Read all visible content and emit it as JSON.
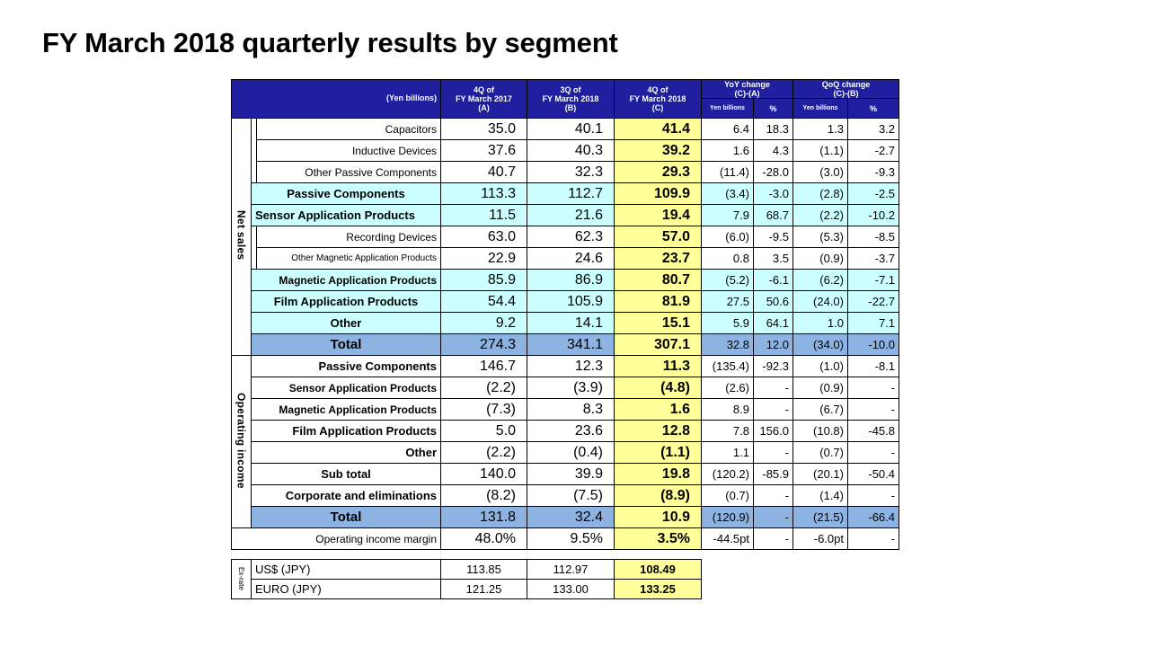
{
  "title": "FY March 2018 quarterly results by segment",
  "header": {
    "unit": "(Yen billions)",
    "col_a": [
      "4Q of",
      "FY March 2017",
      "(A)"
    ],
    "col_b": [
      "3Q of",
      "FY March 2018",
      "(B)"
    ],
    "col_c": [
      "4Q of",
      "FY March 2018",
      "(C)"
    ],
    "yoy": [
      "YoY change",
      "(C)-(A)"
    ],
    "qoq": [
      "QoQ change",
      "(C)-(B)"
    ],
    "yen_billions": "Yen billions",
    "percent": "%"
  },
  "net_sales_label": "Net sales",
  "net_sales": [
    {
      "label": "Capacitors",
      "a": "35.0",
      "b": "40.1",
      "c": "41.4",
      "yoy": "6.4",
      "yoy_pct": "18.3",
      "qoq": "1.3",
      "qoq_pct": "3.2"
    },
    {
      "label": "Inductive Devices",
      "a": "37.6",
      "b": "40.3",
      "c": "39.2",
      "yoy": "1.6",
      "yoy_pct": "4.3",
      "qoq": "(1.1)",
      "qoq_pct": "-2.7"
    },
    {
      "label": "Other Passive Components",
      "a": "40.7",
      "b": "32.3",
      "c": "29.3",
      "yoy": "(11.4)",
      "yoy_pct": "-28.0",
      "qoq": "(3.0)",
      "qoq_pct": "-9.3"
    },
    {
      "label": "Passive Components",
      "a": "113.3",
      "b": "112.7",
      "c": "109.9",
      "yoy": "(3.4)",
      "yoy_pct": "-3.0",
      "qoq": "(2.8)",
      "qoq_pct": "-2.5"
    },
    {
      "label": "Sensor Application Products",
      "a": "11.5",
      "b": "21.6",
      "c": "19.4",
      "yoy": "7.9",
      "yoy_pct": "68.7",
      "qoq": "(2.2)",
      "qoq_pct": "-10.2"
    },
    {
      "label": "Recording Devices",
      "a": "63.0",
      "b": "62.3",
      "c": "57.0",
      "yoy": "(6.0)",
      "yoy_pct": "-9.5",
      "qoq": "(5.3)",
      "qoq_pct": "-8.5"
    },
    {
      "label": "Other Magnetic Application Products",
      "a": "22.9",
      "b": "24.6",
      "c": "23.7",
      "yoy": "0.8",
      "yoy_pct": "3.5",
      "qoq": "(0.9)",
      "qoq_pct": "-3.7"
    },
    {
      "label": "Magnetic Application Products",
      "a": "85.9",
      "b": "86.9",
      "c": "80.7",
      "yoy": "(5.2)",
      "yoy_pct": "-6.1",
      "qoq": "(6.2)",
      "qoq_pct": "-7.1"
    },
    {
      "label": "Film Application Products",
      "a": "54.4",
      "b": "105.9",
      "c": "81.9",
      "yoy": "27.5",
      "yoy_pct": "50.6",
      "qoq": "(24.0)",
      "qoq_pct": "-22.7"
    },
    {
      "label": "Other",
      "a": "9.2",
      "b": "14.1",
      "c": "15.1",
      "yoy": "5.9",
      "yoy_pct": "64.1",
      "qoq": "1.0",
      "qoq_pct": "7.1"
    },
    {
      "label": "Total",
      "a": "274.3",
      "b": "341.1",
      "c": "307.1",
      "yoy": "32.8",
      "yoy_pct": "12.0",
      "qoq": "(34.0)",
      "qoq_pct": "-10.0"
    }
  ],
  "op_income_label": "Operating income",
  "op_income": [
    {
      "label": "Passive Components",
      "a": "146.7",
      "b": "12.3",
      "c": "11.3",
      "yoy": "(135.4)",
      "yoy_pct": "-92.3",
      "qoq": "(1.0)",
      "qoq_pct": "-8.1"
    },
    {
      "label": "Sensor Application Products",
      "a": "(2.2)",
      "b": "(3.9)",
      "c": "(4.8)",
      "yoy": "(2.6)",
      "yoy_pct": "-",
      "qoq": "(0.9)",
      "qoq_pct": "-"
    },
    {
      "label": "Magnetic Application Products",
      "a": "(7.3)",
      "b": "8.3",
      "c": "1.6",
      "yoy": "8.9",
      "yoy_pct": "-",
      "qoq": "(6.7)",
      "qoq_pct": "-"
    },
    {
      "label": "Film Application Products",
      "a": "5.0",
      "b": "23.6",
      "c": "12.8",
      "yoy": "7.8",
      "yoy_pct": "156.0",
      "qoq": "(10.8)",
      "qoq_pct": "-45.8"
    },
    {
      "label": "Other",
      "a": "(2.2)",
      "b": "(0.4)",
      "c": "(1.1)",
      "yoy": "1.1",
      "yoy_pct": "-",
      "qoq": "(0.7)",
      "qoq_pct": "-"
    },
    {
      "label": "Sub total",
      "a": "140.0",
      "b": "39.9",
      "c": "19.8",
      "yoy": "(120.2)",
      "yoy_pct": "-85.9",
      "qoq": "(20.1)",
      "qoq_pct": "-50.4"
    },
    {
      "label": "Corporate and eliminations",
      "a": "(8.2)",
      "b": "(7.5)",
      "c": "(8.9)",
      "yoy": "(0.7)",
      "yoy_pct": "-",
      "qoq": "(1.4)",
      "qoq_pct": "-"
    },
    {
      "label": "Total",
      "a": "131.8",
      "b": "32.4",
      "c": "10.9",
      "yoy": "(120.9)",
      "yoy_pct": "-",
      "qoq": "(21.5)",
      "qoq_pct": "-66.4"
    }
  ],
  "margin": {
    "label": "Operating income margin",
    "a": "48.0%",
    "b": "9.5%",
    "c": "3.5%",
    "yoy": "-44.5pt",
    "yoy_pct": "-",
    "qoq": "-6.0pt",
    "qoq_pct": "-"
  },
  "fx": {
    "side_label": "Ex-rate",
    "rows": [
      {
        "label": "US$ (JPY)",
        "a": "113.85",
        "b": "112.97",
        "c": "108.49"
      },
      {
        "label": "EURO (JPY)",
        "a": "121.25",
        "b": "133.00",
        "c": "133.25"
      }
    ]
  },
  "colors": {
    "header": "#1f1fa0",
    "highlight": "#ffff99",
    "subtotal": "#ccffff",
    "total": "#8db3e2"
  }
}
